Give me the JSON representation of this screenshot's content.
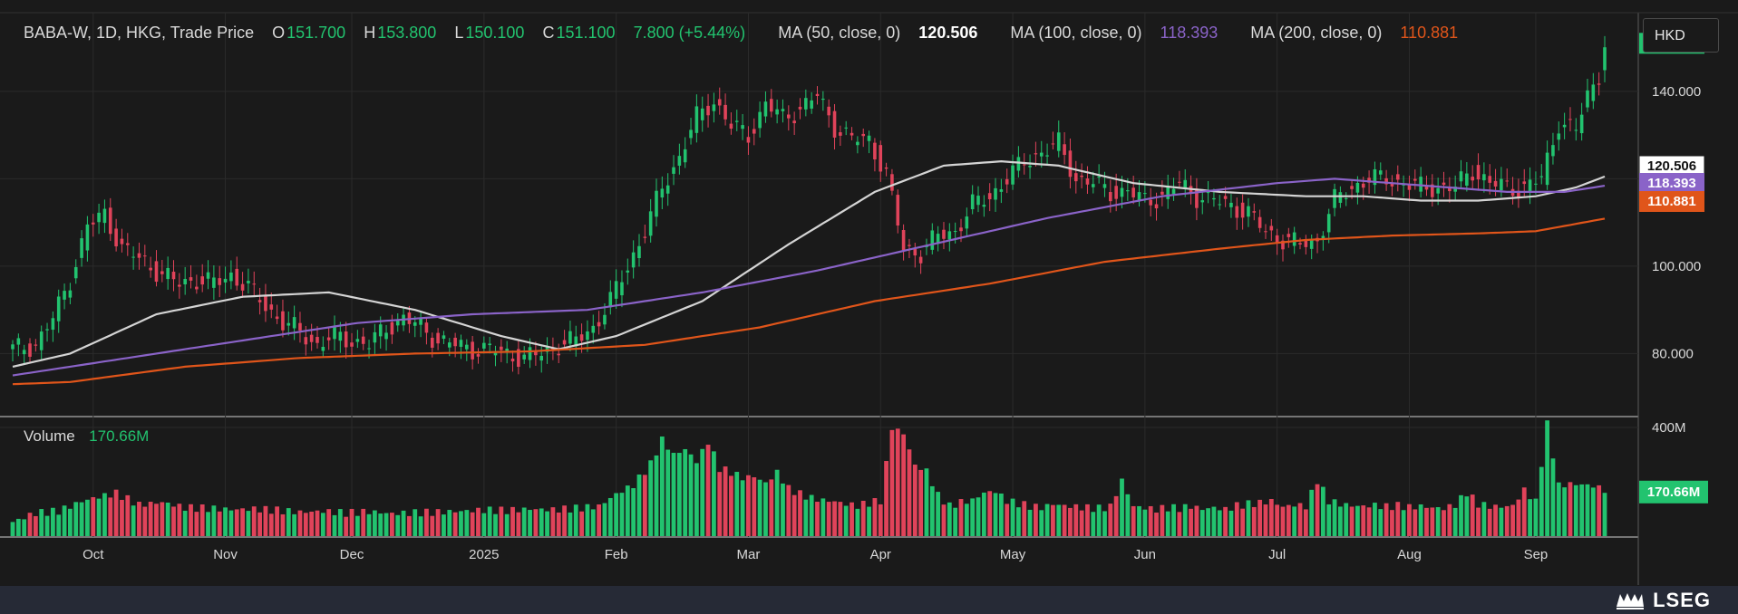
{
  "header": {
    "symbol": "BABA-W, 1D, HKG, Trade Price",
    "o_label": "O",
    "o_value": "151.700",
    "h_label": "H",
    "h_value": "153.800",
    "l_label": "L",
    "l_value": "150.100",
    "c_label": "C",
    "c_value": "151.100",
    "change": "7.800 (+5.44%)",
    "ma50_label": "MA (50, close, 0)",
    "ma50_value": "120.506",
    "ma100_label": "MA (100, close, 0)",
    "ma100_value": "118.393",
    "ma200_label": "MA (200, close, 0)",
    "ma200_value": "110.881"
  },
  "currency_button": "HKD",
  "volume": {
    "label": "Volume",
    "value": "170.66M"
  },
  "logo": "LSEG",
  "colors": {
    "up": "#22c36f",
    "down": "#e0435a",
    "ma50": "#d4d4d4",
    "ma100": "#8a63c8",
    "ma200": "#e0551a",
    "bg": "#1a1a1a",
    "grid": "#2b2b2b",
    "text": "#d9d9d9"
  },
  "chart_data": {
    "type": "candlestick",
    "title": "BABA-W, 1D, HKG, Trade Price",
    "price_axis": {
      "ylim": [
        66,
        158
      ],
      "ticks": [
        "80.000",
        "100.000",
        "140.000"
      ]
    },
    "volume_axis": {
      "ylim": [
        0,
        420
      ],
      "unit": "M",
      "ticks": [
        "400M"
      ]
    },
    "x_tick_labels": [
      "Oct",
      "Nov",
      "Dec",
      "2025",
      "Feb",
      "Mar",
      "Apr",
      "May",
      "Jun",
      "Jul",
      "Aug",
      "Sep"
    ],
    "x_tick_index": [
      14,
      37,
      59,
      82,
      105,
      128,
      151,
      174,
      197,
      220,
      243,
      265
    ],
    "price_labels": [
      {
        "value": "151.100",
        "price": 151.1,
        "color": "#22c36f"
      },
      {
        "value": "120.506",
        "price": 120.506,
        "color": "#ffffff"
      },
      {
        "value": "118.393",
        "price": 118.393,
        "color": "#8a63c8"
      },
      {
        "value": "110.881",
        "price": 110.881,
        "color": "#e0551a"
      }
    ],
    "volume_label": {
      "value": "170.66M",
      "volume": 170.66
    },
    "close_path": [
      [
        0,
        81
      ],
      [
        4,
        82
      ],
      [
        7,
        88
      ],
      [
        10,
        97
      ],
      [
        13,
        109
      ],
      [
        16,
        112
      ],
      [
        19,
        104
      ],
      [
        23,
        101
      ],
      [
        26,
        98
      ],
      [
        29,
        96
      ],
      [
        32,
        97
      ],
      [
        35,
        96
      ],
      [
        38,
        98
      ],
      [
        41,
        95
      ],
      [
        44,
        91
      ],
      [
        47,
        87
      ],
      [
        50,
        85
      ],
      [
        53,
        82
      ],
      [
        56,
        84
      ],
      [
        59,
        83
      ],
      [
        62,
        82
      ],
      [
        65,
        86
      ],
      [
        68,
        88
      ],
      [
        71,
        86
      ],
      [
        74,
        83
      ],
      [
        77,
        82
      ],
      [
        80,
        81
      ],
      [
        83,
        81
      ],
      [
        86,
        80
      ],
      [
        89,
        79
      ],
      [
        92,
        80
      ],
      [
        95,
        82
      ],
      [
        98,
        83
      ],
      [
        101,
        86
      ],
      [
        104,
        92
      ],
      [
        107,
        100
      ],
      [
        110,
        108
      ],
      [
        113,
        118
      ],
      [
        116,
        125
      ],
      [
        119,
        134
      ],
      [
        122,
        138
      ],
      [
        125,
        132
      ],
      [
        128,
        130
      ],
      [
        131,
        137
      ],
      [
        134,
        134
      ],
      [
        137,
        136
      ],
      [
        140,
        139
      ],
      [
        143,
        132
      ],
      [
        146,
        129
      ],
      [
        149,
        129
      ],
      [
        152,
        121
      ],
      [
        155,
        104
      ],
      [
        158,
        103
      ],
      [
        161,
        107
      ],
      [
        164,
        108
      ],
      [
        167,
        114
      ],
      [
        170,
        116
      ],
      [
        173,
        120
      ],
      [
        176,
        124
      ],
      [
        179,
        126
      ],
      [
        182,
        128
      ],
      [
        185,
        120
      ],
      [
        188,
        119
      ],
      [
        191,
        117
      ],
      [
        194,
        117
      ],
      [
        197,
        115
      ],
      [
        200,
        116
      ],
      [
        203,
        119
      ],
      [
        206,
        116
      ],
      [
        209,
        115
      ],
      [
        212,
        114
      ],
      [
        215,
        112
      ],
      [
        218,
        108
      ],
      [
        221,
        106
      ],
      [
        224,
        105
      ],
      [
        227,
        106
      ],
      [
        230,
        115
      ],
      [
        233,
        118
      ],
      [
        236,
        120
      ],
      [
        239,
        120
      ],
      [
        242,
        119
      ],
      [
        245,
        118
      ],
      [
        248,
        118
      ],
      [
        251,
        118
      ],
      [
        254,
        122
      ],
      [
        257,
        119
      ],
      [
        260,
        118
      ],
      [
        263,
        118
      ],
      [
        266,
        120
      ],
      [
        269,
        133
      ],
      [
        272,
        131
      ],
      [
        274,
        139
      ],
      [
        276,
        144
      ],
      [
        277,
        151.1
      ]
    ],
    "series": [
      {
        "name": "MA (50, close, 0)",
        "color": "#d4d4d4",
        "points": [
          [
            0,
            77
          ],
          [
            10,
            80
          ],
          [
            25,
            89
          ],
          [
            40,
            93
          ],
          [
            55,
            94
          ],
          [
            70,
            90
          ],
          [
            85,
            84
          ],
          [
            95,
            81
          ],
          [
            105,
            84
          ],
          [
            120,
            92
          ],
          [
            135,
            105
          ],
          [
            150,
            117
          ],
          [
            162,
            123
          ],
          [
            172,
            124
          ],
          [
            182,
            123
          ],
          [
            195,
            119
          ],
          [
            210,
            117
          ],
          [
            225,
            116
          ],
          [
            235,
            116
          ],
          [
            245,
            115
          ],
          [
            255,
            115
          ],
          [
            265,
            116
          ],
          [
            272,
            118
          ],
          [
            277,
            120.506
          ]
        ]
      },
      {
        "name": "MA (100, close, 0)",
        "color": "#8a63c8",
        "points": [
          [
            0,
            75
          ],
          [
            20,
            79
          ],
          [
            40,
            83
          ],
          [
            60,
            87
          ],
          [
            80,
            89
          ],
          [
            100,
            90
          ],
          [
            120,
            94
          ],
          [
            140,
            99
          ],
          [
            160,
            105
          ],
          [
            180,
            111
          ],
          [
            200,
            116
          ],
          [
            220,
            119
          ],
          [
            230,
            120
          ],
          [
            245,
            118.5
          ],
          [
            260,
            117
          ],
          [
            270,
            117
          ],
          [
            277,
            118.393
          ]
        ]
      },
      {
        "name": "MA (200, close, 0)",
        "color": "#e0551a",
        "points": [
          [
            0,
            73
          ],
          [
            10,
            73.5
          ],
          [
            30,
            77
          ],
          [
            50,
            79
          ],
          [
            70,
            80
          ],
          [
            90,
            80.5
          ],
          [
            110,
            82
          ],
          [
            130,
            86
          ],
          [
            150,
            92
          ],
          [
            170,
            96
          ],
          [
            190,
            101
          ],
          [
            210,
            104
          ],
          [
            225,
            106
          ],
          [
            240,
            107
          ],
          [
            255,
            107.5
          ],
          [
            265,
            108
          ],
          [
            277,
            110.881
          ]
        ]
      }
    ],
    "volume": [
      [
        0,
        52
      ],
      [
        4,
        85
      ],
      [
        8,
        92
      ],
      [
        12,
        128
      ],
      [
        14,
        140
      ],
      [
        18,
        158
      ],
      [
        22,
        115
      ],
      [
        26,
        125
      ],
      [
        30,
        105
      ],
      [
        34,
        102
      ],
      [
        38,
        98
      ],
      [
        42,
        100
      ],
      [
        46,
        95
      ],
      [
        50,
        88
      ],
      [
        54,
        92
      ],
      [
        58,
        85
      ],
      [
        62,
        90
      ],
      [
        66,
        83
      ],
      [
        70,
        86
      ],
      [
        74,
        88
      ],
      [
        78,
        92
      ],
      [
        82,
        96
      ],
      [
        86,
        94
      ],
      [
        90,
        100
      ],
      [
        94,
        97
      ],
      [
        98,
        102
      ],
      [
        102,
        110
      ],
      [
        105,
        155
      ],
      [
        108,
        188
      ],
      [
        111,
        265
      ],
      [
        113,
        355
      ],
      [
        115,
        300
      ],
      [
        117,
        320
      ],
      [
        119,
        275
      ],
      [
        121,
        348
      ],
      [
        123,
        250
      ],
      [
        125,
        235
      ],
      [
        127,
        215
      ],
      [
        129,
        220
      ],
      [
        131,
        195
      ],
      [
        133,
        235
      ],
      [
        135,
        175
      ],
      [
        137,
        155
      ],
      [
        139,
        140
      ],
      [
        141,
        132
      ],
      [
        143,
        128
      ],
      [
        145,
        118
      ],
      [
        147,
        112
      ],
      [
        149,
        122
      ],
      [
        151,
        130
      ],
      [
        153,
        400
      ],
      [
        155,
        378
      ],
      [
        157,
        260
      ],
      [
        159,
        240
      ],
      [
        161,
        150
      ],
      [
        163,
        110
      ],
      [
        165,
        125
      ],
      [
        167,
        132
      ],
      [
        169,
        160
      ],
      [
        171,
        165
      ],
      [
        173,
        130
      ],
      [
        175,
        120
      ],
      [
        177,
        110
      ],
      [
        179,
        105
      ],
      [
        181,
        118
      ],
      [
        183,
        112
      ],
      [
        185,
        108
      ],
      [
        187,
        104
      ],
      [
        189,
        102
      ],
      [
        191,
        108
      ],
      [
        193,
        205
      ],
      [
        195,
        110
      ],
      [
        197,
        104
      ],
      [
        199,
        98
      ],
      [
        201,
        105
      ],
      [
        203,
        102
      ],
      [
        205,
        110
      ],
      [
        207,
        100
      ],
      [
        209,
        105
      ],
      [
        211,
        98
      ],
      [
        213,
        112
      ],
      [
        215,
        118
      ],
      [
        217,
        122
      ],
      [
        219,
        130
      ],
      [
        221,
        108
      ],
      [
        223,
        115
      ],
      [
        225,
        110
      ],
      [
        227,
        205
      ],
      [
        229,
        130
      ],
      [
        231,
        118
      ],
      [
        233,
        112
      ],
      [
        235,
        110
      ],
      [
        237,
        114
      ],
      [
        239,
        108
      ],
      [
        241,
        112
      ],
      [
        243,
        106
      ],
      [
        245,
        110
      ],
      [
        247,
        105
      ],
      [
        249,
        102
      ],
      [
        251,
        115
      ],
      [
        253,
        160
      ],
      [
        255,
        118
      ],
      [
        257,
        110
      ],
      [
        259,
        108
      ],
      [
        261,
        112
      ],
      [
        263,
        170
      ],
      [
        265,
        125
      ],
      [
        267,
        412
      ],
      [
        269,
        186
      ],
      [
        271,
        192
      ],
      [
        273,
        190
      ],
      [
        275,
        185
      ],
      [
        277,
        170.66
      ]
    ]
  }
}
